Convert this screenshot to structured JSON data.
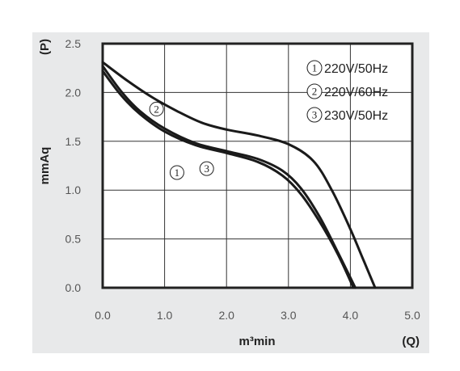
{
  "chart_data": {
    "type": "line",
    "x_axis_label": "m³min",
    "x_axis_symbol": "(Q)",
    "y_axis_label": "mmAq",
    "y_axis_symbol": "(P)",
    "x_ticks": [
      "0.0",
      "1.0",
      "2.0",
      "3.0",
      "4.0",
      "5.0"
    ],
    "y_ticks": [
      "0.0",
      "0.5",
      "1.0",
      "1.5",
      "2.0",
      "2.5"
    ],
    "xlim": [
      0,
      5
    ],
    "ylim": [
      0,
      2.5
    ],
    "grid": true,
    "legend_position": "top-right",
    "series": [
      {
        "marker": "1",
        "name": "220V/50Hz",
        "label_at": [
          1.2,
          1.18
        ],
        "points": [
          [
            0,
            2.22
          ],
          [
            0.3,
            1.97
          ],
          [
            0.6,
            1.78
          ],
          [
            1.0,
            1.6
          ],
          [
            1.5,
            1.46
          ],
          [
            2.0,
            1.38
          ],
          [
            2.5,
            1.29
          ],
          [
            2.9,
            1.15
          ],
          [
            3.2,
            0.96
          ],
          [
            3.5,
            0.68
          ],
          [
            3.8,
            0.34
          ],
          [
            4.05,
            0.0
          ]
        ]
      },
      {
        "marker": "2",
        "name": "220V/60Hz",
        "label_at": [
          0.87,
          1.83
        ],
        "points": [
          [
            0,
            2.31
          ],
          [
            0.4,
            2.12
          ],
          [
            0.8,
            1.95
          ],
          [
            1.2,
            1.81
          ],
          [
            1.6,
            1.69
          ],
          [
            2.0,
            1.62
          ],
          [
            2.5,
            1.56
          ],
          [
            3.0,
            1.47
          ],
          [
            3.4,
            1.3
          ],
          [
            3.7,
            1.0
          ],
          [
            4.0,
            0.6
          ],
          [
            4.22,
            0.27
          ],
          [
            4.4,
            0.0
          ]
        ]
      },
      {
        "marker": "3",
        "name": "230V/50Hz",
        "label_at": [
          1.68,
          1.22
        ],
        "points": [
          [
            0,
            2.27
          ],
          [
            0.3,
            2.01
          ],
          [
            0.6,
            1.81
          ],
          [
            1.0,
            1.63
          ],
          [
            1.5,
            1.48
          ],
          [
            2.0,
            1.4
          ],
          [
            2.5,
            1.32
          ],
          [
            2.9,
            1.2
          ],
          [
            3.2,
            1.02
          ],
          [
            3.5,
            0.73
          ],
          [
            3.8,
            0.36
          ],
          [
            4.08,
            0.0
          ]
        ]
      }
    ]
  }
}
